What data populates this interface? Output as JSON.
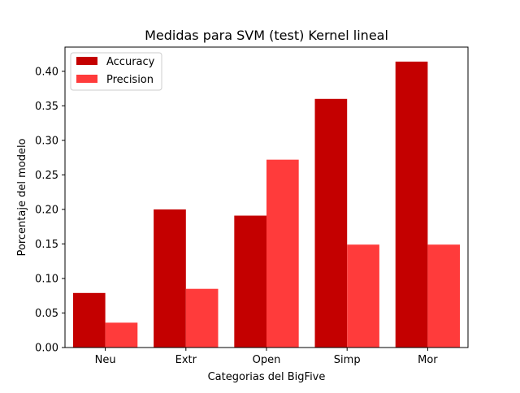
{
  "chart_data": {
    "type": "bar",
    "title": "Medidas para SVM (test) Kernel lineal",
    "xlabel": "Categorias del BigFive",
    "ylabel": "Porcentaje del modelo",
    "categories": [
      "Neu",
      "Extr",
      "Open",
      "Simp",
      "Mor"
    ],
    "series": [
      {
        "name": "Accuracy",
        "color": "#c40000",
        "values": [
          0.079,
          0.2,
          0.191,
          0.36,
          0.414
        ]
      },
      {
        "name": "Precision",
        "color": "#ff3b3b",
        "values": [
          0.036,
          0.085,
          0.272,
          0.149,
          0.149
        ]
      }
    ],
    "ylim": [
      0,
      0.435
    ],
    "yticks": [
      "0.00",
      "0.05",
      "0.10",
      "0.15",
      "0.20",
      "0.25",
      "0.30",
      "0.35",
      "0.40"
    ],
    "legend": "top-left",
    "grid": false
  }
}
